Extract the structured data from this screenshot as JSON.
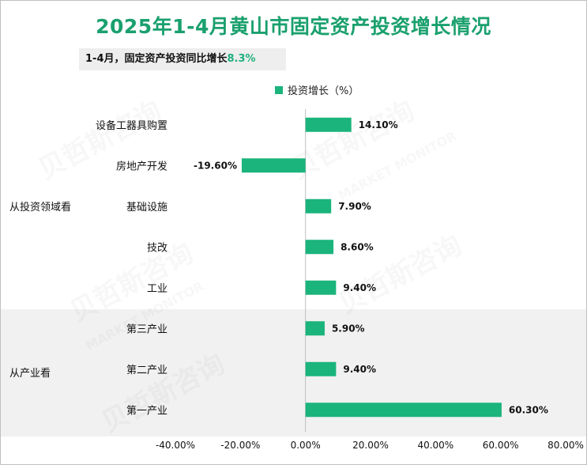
{
  "title": "2025年1-4月黄山市固定资产投资增长情况",
  "summary": {
    "prefix": "1-4月，固定资产投资同比增长",
    "value": "8.3%"
  },
  "watermark": {
    "cn": "贝哲斯咨询",
    "en": "MARKET MONITOR"
  },
  "groups": [
    "从投资领域看",
    "从产业看"
  ],
  "colors": {
    "bar": "#1ab47c",
    "title": "#1aa06e"
  },
  "chart_data": {
    "type": "bar",
    "orientation": "horizontal",
    "title": "2025年1-4月黄山市固定资产投资增长情况",
    "legend": "投资增长（%）",
    "legend_position": "top",
    "categories": [
      "设备工器具购置",
      "房地产开发",
      "基础设施",
      "技改",
      "工业",
      "第三产业",
      "第二产业",
      "第一产业"
    ],
    "values": [
      14.1,
      -19.6,
      7.9,
      8.6,
      9.4,
      5.9,
      9.4,
      60.3
    ],
    "value_labels": [
      "14.10%",
      "-19.60%",
      "7.90%",
      "8.60%",
      "9.40%",
      "5.90%",
      "9.40%",
      "60.30%"
    ],
    "xlim": [
      -40,
      80
    ],
    "x_ticks": [
      -40,
      -20,
      0,
      20,
      40,
      60,
      80
    ],
    "x_tick_labels": [
      "-40.00%",
      "-20.00%",
      "0.00%",
      "20.00%",
      "40.00%",
      "60.00%",
      "80.00%"
    ],
    "grid": false
  }
}
